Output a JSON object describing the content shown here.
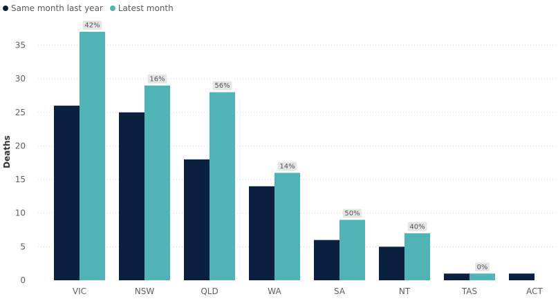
{
  "legend": {
    "same_month_label": "Same month last year",
    "latest_month_label": "Latest month"
  },
  "chart_data": {
    "type": "bar",
    "categories": [
      "VIC",
      "NSW",
      "QLD",
      "WA",
      "SA",
      "NT",
      "TAS",
      "ACT"
    ],
    "series": [
      {
        "name": "Same month last year",
        "color": "#0b1f3f",
        "values": [
          26,
          25,
          18,
          14,
          6,
          5,
          1,
          1
        ]
      },
      {
        "name": "Latest month",
        "color": "#50b3b6",
        "values": [
          37,
          29,
          28,
          16,
          9,
          7,
          1,
          0
        ]
      }
    ],
    "data_labels": [
      "42%",
      "16%",
      "56%",
      "14%",
      "50%",
      "40%",
      "0%",
      ""
    ],
    "ylabel": "Deaths",
    "xlabel": "",
    "ylim": [
      0,
      38
    ],
    "yticks": [
      0,
      5,
      10,
      15,
      20,
      25,
      30,
      35
    ],
    "grid": true,
    "legend_position": "top-left"
  }
}
